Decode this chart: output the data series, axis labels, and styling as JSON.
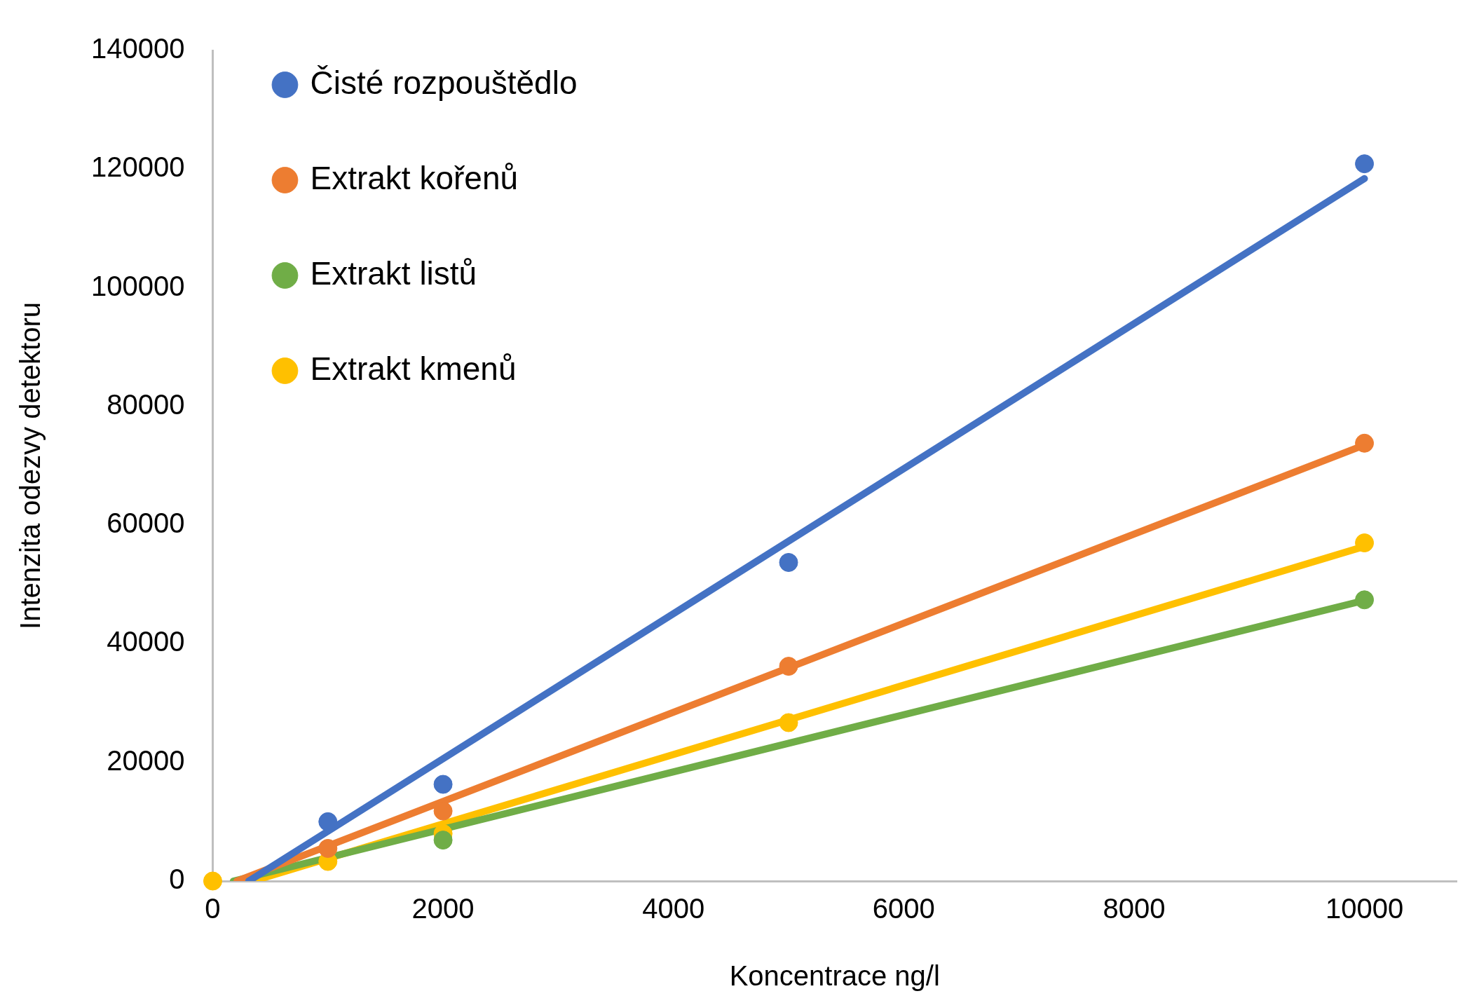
{
  "chart_data": {
    "type": "scatter",
    "xlabel": "Koncentrace ng/l",
    "ylabel": "Intenzita odezvy detektoru",
    "x": [
      0,
      1000,
      2000,
      5000,
      10000
    ],
    "series": [
      {
        "name": "Čisté rozpouštědlo",
        "color": "#4472c4",
        "marker": "circle",
        "values": [
          null,
          10000,
          16300,
          53700,
          120900
        ]
      },
      {
        "name": "Extrakt kořenů",
        "color": "#ed7d31",
        "marker": "circle",
        "values": [
          null,
          5500,
          11800,
          36200,
          73800
        ]
      },
      {
        "name": "Extrakt listů",
        "color": "#70ad47",
        "marker": "circle",
        "values": [
          null,
          null,
          6900,
          null,
          47400
        ]
      },
      {
        "name": "Extrakt kmenů",
        "color": "#ffc000",
        "marker": "circle",
        "values": [
          0,
          3300,
          8000,
          26700,
          57000
        ]
      },
      {
        "type": "line",
        "color": "#4472c4",
        "marker": "none",
        "x": [
          313,
          10000
        ],
        "values": [
          0,
          118400
        ]
      },
      {
        "type": "line",
        "color": "#ed7d31",
        "marker": "none",
        "x": [
          211,
          10000
        ],
        "values": [
          0,
          73500
        ]
      },
      {
        "type": "line",
        "color": "#70ad47",
        "marker": "none",
        "x": [
          179,
          10000
        ],
        "values": [
          0,
          47300
        ]
      },
      {
        "type": "line",
        "color": "#ffc000",
        "marker": "none",
        "x": [
          350,
          10000
        ],
        "values": [
          0,
          56400
        ]
      }
    ],
    "xlim": [
      0,
      10800
    ],
    "xticks": [
      0,
      2000,
      4000,
      6000,
      8000,
      10000
    ],
    "ylim": [
      0,
      140000
    ],
    "yticks": [
      0,
      20000,
      40000,
      60000,
      80000,
      100000,
      120000,
      140000
    ],
    "grid": false,
    "legend": "top left",
    "line_style": "solid"
  }
}
